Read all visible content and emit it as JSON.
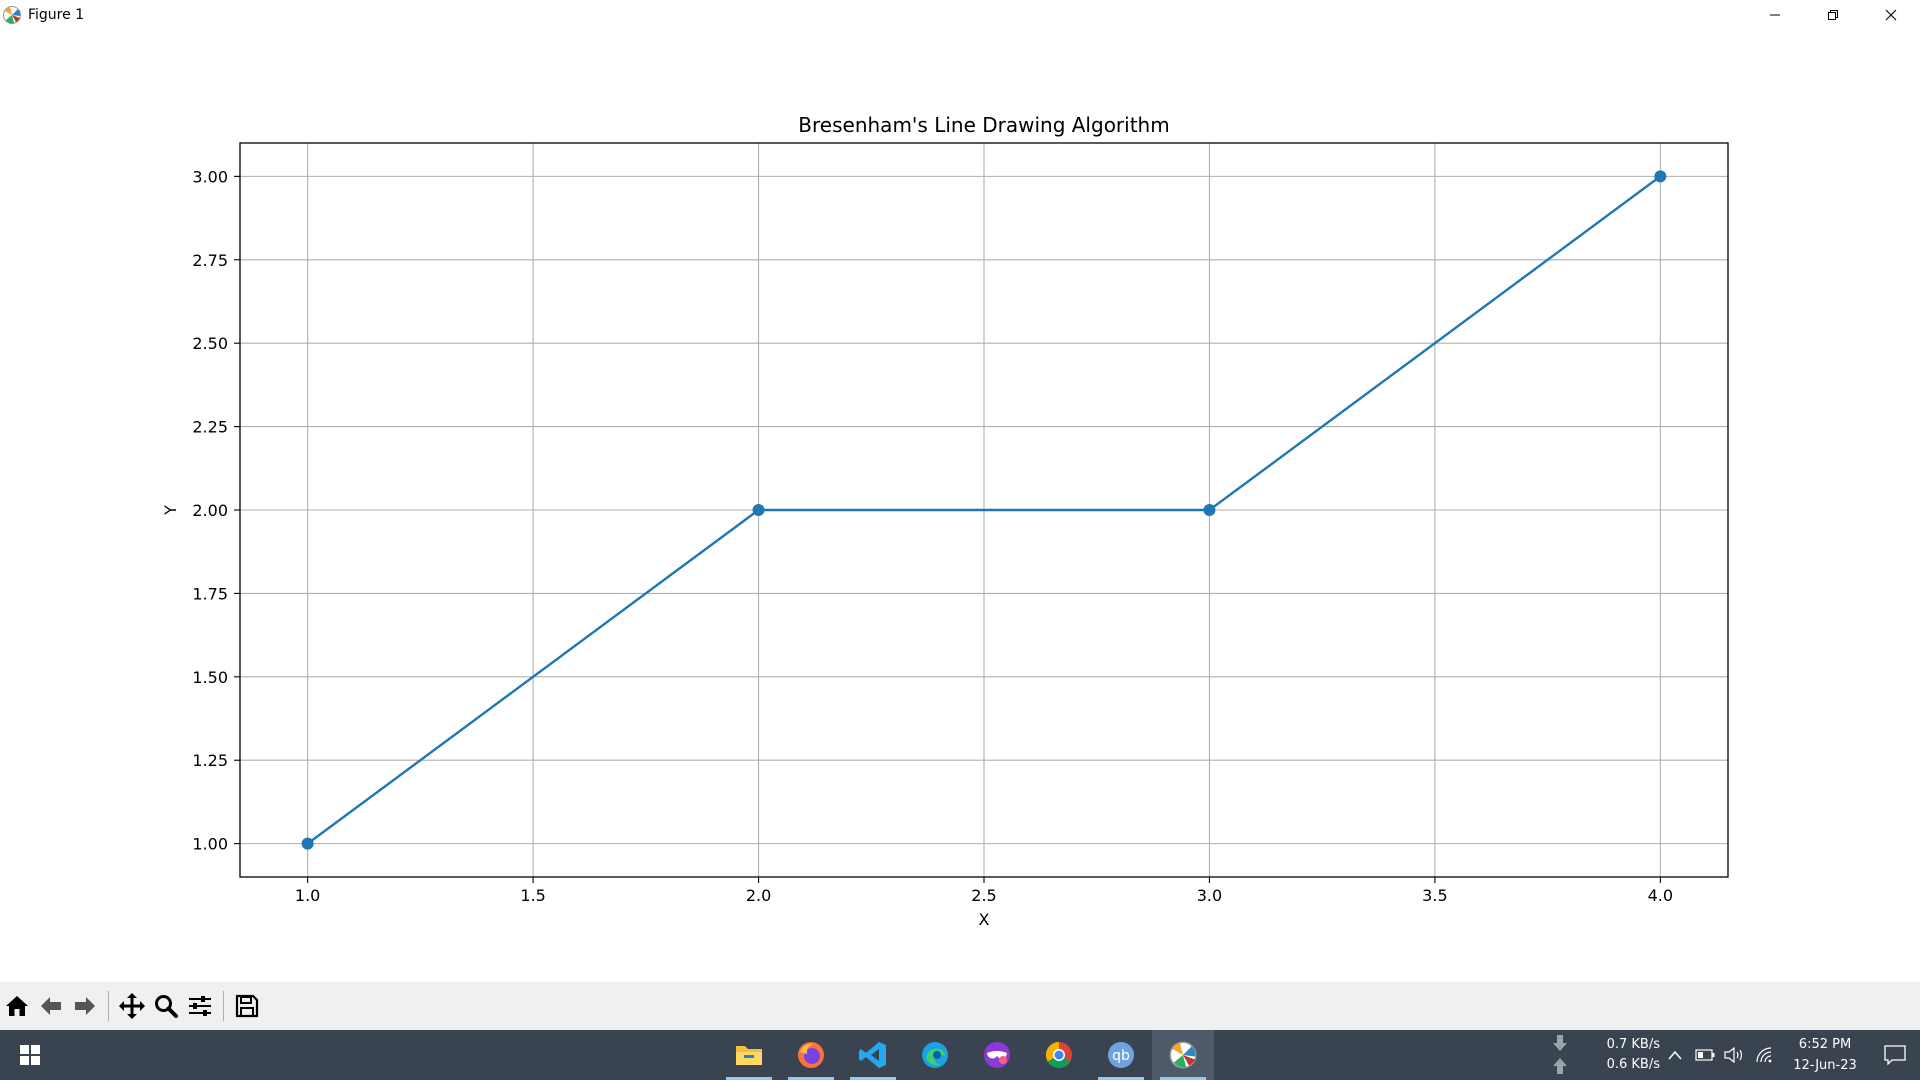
{
  "window": {
    "title": "Figure 1",
    "controls": [
      "minimize-icon",
      "restore-icon",
      "close-icon"
    ]
  },
  "chart_data": {
    "type": "line",
    "title": "Bresenham's Line Drawing Algorithm",
    "xlabel": "X",
    "ylabel": "Y",
    "x": [
      1,
      2,
      3,
      4
    ],
    "series": [
      {
        "values": [
          1,
          2,
          2,
          3
        ],
        "color": "#1f77b4",
        "marker": "circle"
      }
    ],
    "xlim": [
      0.85,
      4.15
    ],
    "ylim": [
      0.9,
      3.1
    ],
    "xticks": [
      1.0,
      1.5,
      2.0,
      2.5,
      3.0,
      3.5,
      4.0
    ],
    "xtick_labels": [
      "1.0",
      "1.5",
      "2.0",
      "2.5",
      "3.0",
      "3.5",
      "4.0"
    ],
    "yticks": [
      1.0,
      1.25,
      1.5,
      1.75,
      2.0,
      2.25,
      2.5,
      2.75,
      3.0
    ],
    "ytick_labels": [
      "1.00",
      "1.25",
      "1.50",
      "1.75",
      "2.00",
      "2.25",
      "2.50",
      "2.75",
      "3.00"
    ],
    "grid": true
  },
  "toolbar": {
    "buttons": [
      "home-icon",
      "back-icon",
      "forward-icon",
      "pan-icon",
      "zoom-icon",
      "configure-subplots-icon",
      "save-icon"
    ]
  },
  "taskbar": {
    "apps": [
      {
        "name": "file-explorer",
        "running": true,
        "color": "#f0c040"
      },
      {
        "name": "firefox",
        "running": true,
        "color": "#ff7139"
      },
      {
        "name": "vscode",
        "running": true,
        "color": "#23a9f2"
      },
      {
        "name": "edge",
        "running": false,
        "color": "#1fa0e0"
      },
      {
        "name": "vpn-app",
        "running": false,
        "color": "#8a3ad6"
      },
      {
        "name": "chrome",
        "running": false,
        "color": "#34a853"
      },
      {
        "name": "qbittorrent",
        "running": true,
        "color": "#6fa3e0",
        "label": "qb"
      },
      {
        "name": "matplotlib-figure",
        "running": true,
        "active": true,
        "color": "#ffffff"
      }
    ],
    "net_download": "0.7 KB/s",
    "net_upload": "0.6 KB/s",
    "time": "6:52 PM",
    "date": "12-Jun-23"
  }
}
